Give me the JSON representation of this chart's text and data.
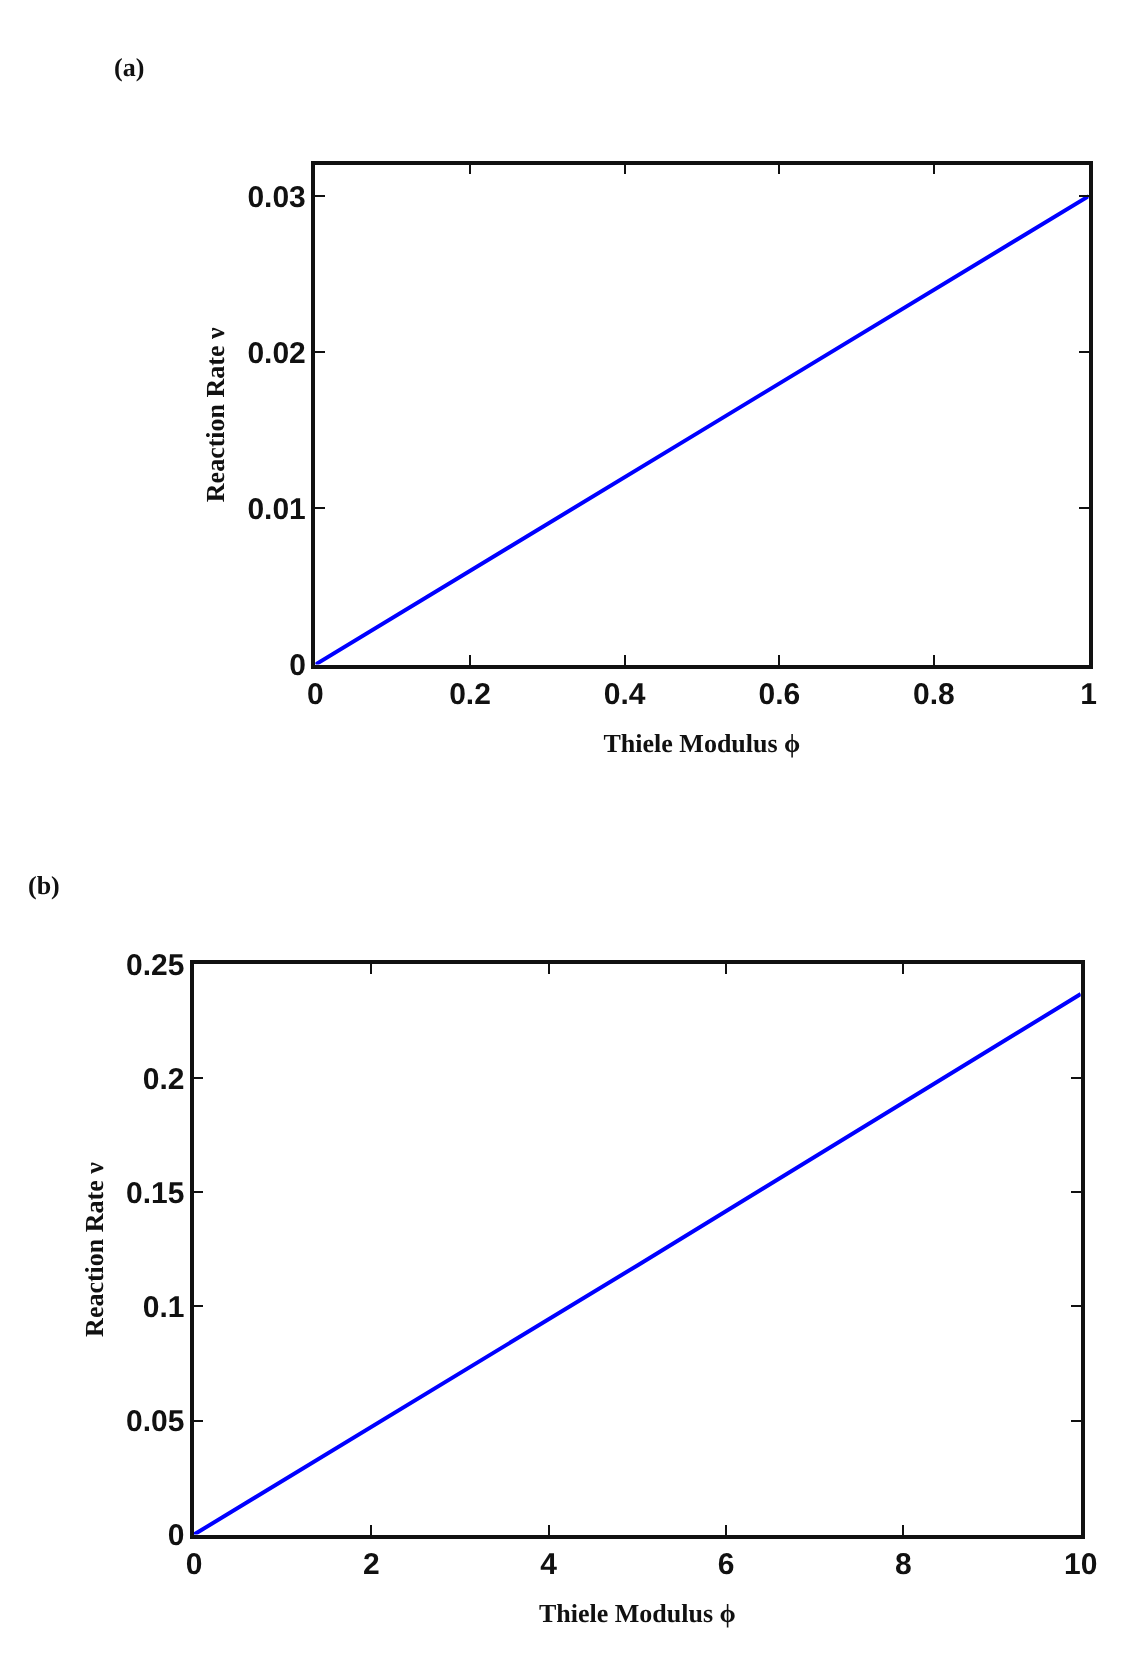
{
  "chart_data": [
    {
      "type": "line",
      "title": "(a)",
      "xlabel": "Thiele Modulus ϕ",
      "ylabel": "Reaction Rate ν",
      "x": [
        0,
        0.5,
        1
      ],
      "series": [
        {
          "color": "#0000ff",
          "values": [
            0,
            0.015,
            0.03
          ]
        }
      ],
      "xlim": [
        0,
        1
      ],
      "xticks": [
        0,
        0.2,
        0.4,
        0.6,
        0.8,
        1
      ],
      "ylim": [
        0,
        0.032
      ],
      "yticks": [
        0,
        0.01,
        0.02,
        0.03
      ]
    },
    {
      "type": "line",
      "title": "(b)",
      "xlabel": "Thiele Modulus ϕ",
      "ylabel": "Reaction Rate ν",
      "x": [
        0,
        5,
        10
      ],
      "series": [
        {
          "color": "#0000ff",
          "values": [
            0,
            0.118,
            0.237
          ]
        }
      ],
      "xlim": [
        0,
        10
      ],
      "xticks": [
        0,
        2,
        4,
        6,
        8,
        10
      ],
      "ylim": [
        0,
        0.25
      ],
      "yticks": [
        0,
        0.05,
        0.1,
        0.15,
        0.2,
        0.25
      ]
    }
  ]
}
